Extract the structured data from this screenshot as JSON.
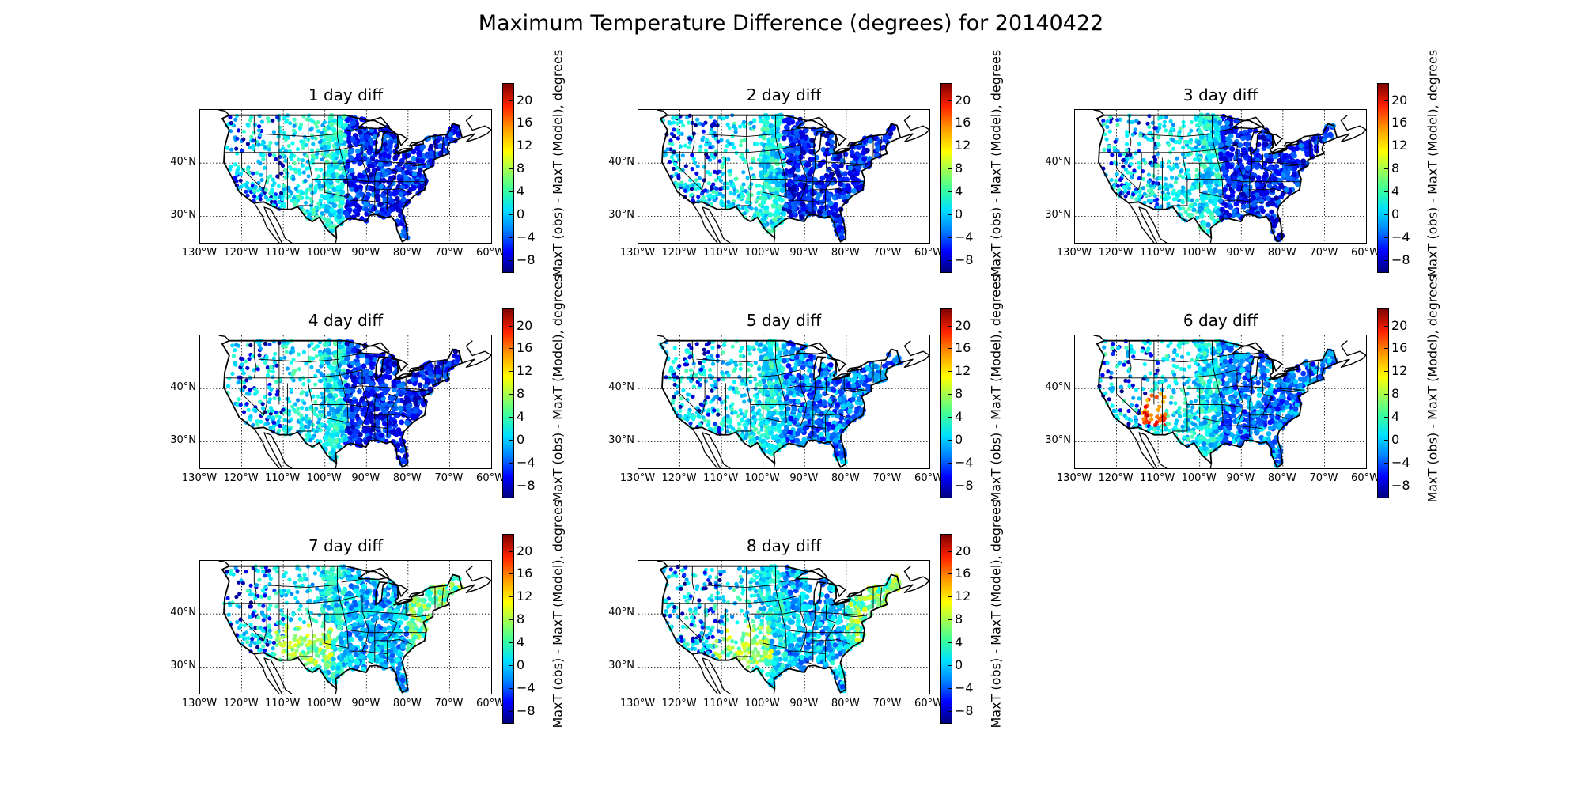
{
  "figure": {
    "title": "Maximum Temperature Difference (degrees) for 20140422"
  },
  "colorbar": {
    "label": "MaxT (obs) - MaxT (Model), degrees",
    "ticks": [
      "20",
      "16",
      "12",
      "8",
      "4",
      "0",
      "−4",
      "−8"
    ],
    "range": [
      -10,
      23
    ],
    "colormap": "jet"
  },
  "axes": {
    "lat_labels": [
      "40°N",
      "30°N"
    ],
    "lon_labels": [
      "130°W",
      "120°W",
      "110°W",
      "100°W",
      "90°W",
      "80°W",
      "70°W",
      "60°W"
    ]
  },
  "panels": [
    {
      "title": "1 day diff"
    },
    {
      "title": "2 day diff"
    },
    {
      "title": "3 day diff"
    },
    {
      "title": "4 day diff"
    },
    {
      "title": "5 day diff"
    },
    {
      "title": "6 day diff"
    },
    {
      "title": "7 day diff"
    },
    {
      "title": "8 day diff"
    }
  ],
  "colors": {
    "coast": "#000000",
    "grid": "#000000"
  }
}
